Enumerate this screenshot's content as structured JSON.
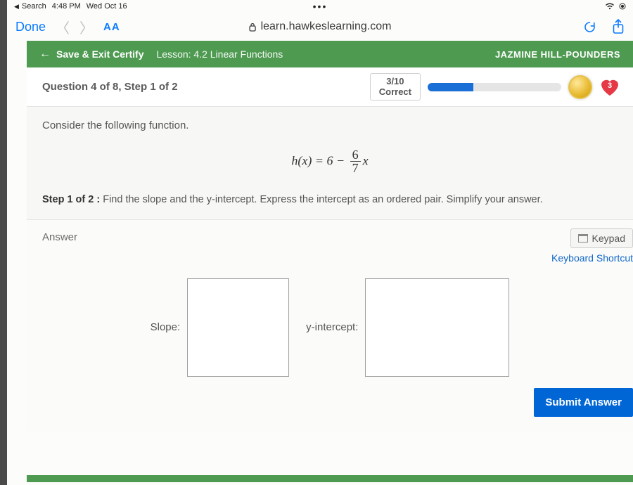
{
  "statusbar": {
    "back_app": "Search",
    "time": "4:48 PM",
    "date": "Wed Oct 16"
  },
  "browser": {
    "done": "Done",
    "aa": "AA",
    "url": "learn.hawkeslearning.com"
  },
  "header": {
    "save_exit": "Save & Exit Certify",
    "lesson": "Lesson: 4.2 Linear Functions",
    "user": "JAZMINE HILL-POUNDERS"
  },
  "question": {
    "title": "Question 4 of 8, Step 1 of 2",
    "score_value": "3/10",
    "score_label": "Correct",
    "progress_pct": 34,
    "heart_count": "3",
    "prompt": "Consider the following function.",
    "func_lhs": "h(x) = 6 −",
    "func_frac_num": "6",
    "func_frac_den": "7",
    "func_rhs": "x",
    "step_label": "Step 1 of 2 :",
    "step_text": "Find the slope and the y-intercept.  Express the intercept as an ordered pair. Simplify your answer."
  },
  "answer": {
    "title": "Answer",
    "keypad": "Keypad",
    "shortcut": "Keyboard Shortcut",
    "slope_label": "Slope:",
    "yint_label": "y-intercept:",
    "submit": "Submit Answer"
  },
  "colors": {
    "green": "#4e9a51",
    "blue_btn": "#0066d6",
    "progress_fill": "#1a6fd6",
    "link": "#0a7aff"
  }
}
